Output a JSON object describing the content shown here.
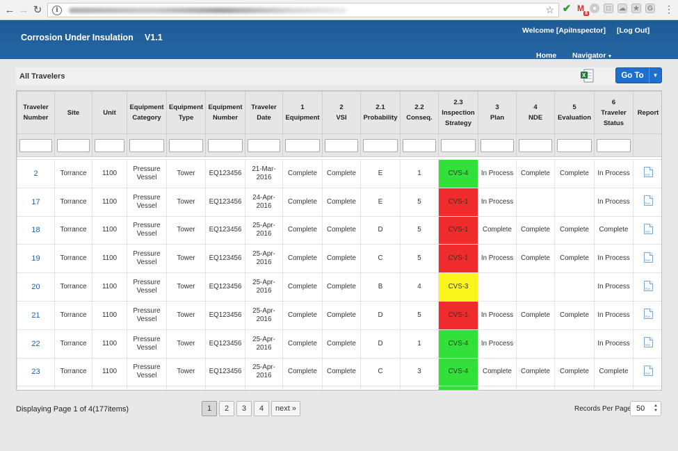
{
  "app": {
    "title": "Corrosion Under Insulation",
    "version": "V1.1",
    "welcome": "Welcome [ApiInspector]",
    "logout": "[Log Out]",
    "nav": {
      "home": "Home",
      "navigator": "Navigator"
    }
  },
  "browser": {
    "gmail_badge": "8"
  },
  "panel": {
    "title": "All Travelers",
    "goto_label": "Go To"
  },
  "columns": [
    {
      "top": "",
      "label": "Traveler Number"
    },
    {
      "top": "",
      "label": "Site"
    },
    {
      "top": "",
      "label": "Unit"
    },
    {
      "top": "",
      "label": "Equipment Category"
    },
    {
      "top": "",
      "label": "Equipment Type"
    },
    {
      "top": "",
      "label": "Equipment Number"
    },
    {
      "top": "",
      "label": "Traveler Date"
    },
    {
      "top": "1",
      "label": "Equipment"
    },
    {
      "top": "2",
      "label": "VSI"
    },
    {
      "top": "2.1",
      "label": "Probability"
    },
    {
      "top": "2.2",
      "label": "Conseq."
    },
    {
      "top": "2.3",
      "label": "Inspection Strategy"
    },
    {
      "top": "3",
      "label": "Plan"
    },
    {
      "top": "4",
      "label": "NDE"
    },
    {
      "top": "5",
      "label": "Evaluation"
    },
    {
      "top": "6",
      "label": "Traveler Status"
    },
    {
      "top": "",
      "label": "Report"
    }
  ],
  "rows": [
    {
      "number": "2",
      "site": "Torrance",
      "unit": "1100",
      "category": "Pressure Vessel",
      "type": "Tower",
      "equipment_number": "EQ123456",
      "date": "21-Mar-2016",
      "equipment": "Complete",
      "vsi": "Complete",
      "probability": "E",
      "conseq": "1",
      "strategy": "CVS-4",
      "strategy_color": "green",
      "plan": "In Process",
      "nde": "Complete",
      "evaluation": "Complete",
      "status": "In Process"
    },
    {
      "number": "17",
      "site": "Torrance",
      "unit": "1100",
      "category": "Pressure Vessel",
      "type": "Tower",
      "equipment_number": "EQ123456",
      "date": "24-Apr-2016",
      "equipment": "Complete",
      "vsi": "Complete",
      "probability": "E",
      "conseq": "5",
      "strategy": "CVS-1",
      "strategy_color": "red",
      "plan": "In Process",
      "nde": "",
      "evaluation": "",
      "status": "In Process"
    },
    {
      "number": "18",
      "site": "Torrance",
      "unit": "1100",
      "category": "Pressure Vessel",
      "type": "Tower",
      "equipment_number": "EQ123456",
      "date": "25-Apr-2016",
      "equipment": "Complete",
      "vsi": "Complete",
      "probability": "D",
      "conseq": "5",
      "strategy": "CVS-1",
      "strategy_color": "red",
      "plan": "Complete",
      "nde": "Complete",
      "evaluation": "Complete",
      "status": "Complete"
    },
    {
      "number": "19",
      "site": "Torrance",
      "unit": "1100",
      "category": "Pressure Vessel",
      "type": "Tower",
      "equipment_number": "EQ123456",
      "date": "25-Apr-2016",
      "equipment": "Complete",
      "vsi": "Complete",
      "probability": "C",
      "conseq": "5",
      "strategy": "CVS-1",
      "strategy_color": "red",
      "plan": "In Process",
      "nde": "Complete",
      "evaluation": "Complete",
      "status": "In Process"
    },
    {
      "number": "20",
      "site": "Torrance",
      "unit": "1100",
      "category": "Pressure Vessel",
      "type": "Tower",
      "equipment_number": "EQ123456",
      "date": "25-Apr-2016",
      "equipment": "Complete",
      "vsi": "Complete",
      "probability": "B",
      "conseq": "4",
      "strategy": "CVS-3",
      "strategy_color": "yellow",
      "plan": "",
      "nde": "",
      "evaluation": "",
      "status": "In Process"
    },
    {
      "number": "21",
      "site": "Torrance",
      "unit": "1100",
      "category": "Pressure Vessel",
      "type": "Tower",
      "equipment_number": "EQ123456",
      "date": "25-Apr-2016",
      "equipment": "Complete",
      "vsi": "Complete",
      "probability": "D",
      "conseq": "5",
      "strategy": "CVS-1",
      "strategy_color": "red",
      "plan": "In Process",
      "nde": "Complete",
      "evaluation": "Complete",
      "status": "In Process"
    },
    {
      "number": "22",
      "site": "Torrance",
      "unit": "1100",
      "category": "Pressure Vessel",
      "type": "Tower",
      "equipment_number": "EQ123456",
      "date": "25-Apr-2016",
      "equipment": "Complete",
      "vsi": "Complete",
      "probability": "D",
      "conseq": "1",
      "strategy": "CVS-4",
      "strategy_color": "green",
      "plan": "In Process",
      "nde": "",
      "evaluation": "",
      "status": "In Process"
    },
    {
      "number": "23",
      "site": "Torrance",
      "unit": "1100",
      "category": "Pressure Vessel",
      "type": "Tower",
      "equipment_number": "EQ123456",
      "date": "25-Apr-2016",
      "equipment": "Complete",
      "vsi": "Complete",
      "probability": "C",
      "conseq": "3",
      "strategy": "CVS-4",
      "strategy_color": "green",
      "plan": "Complete",
      "nde": "Complete",
      "evaluation": "Complete",
      "status": "Complete"
    }
  ],
  "footer": {
    "paging_text": "Displaying Page 1 of 4(177items)",
    "pages": [
      "1",
      "2",
      "3",
      "4"
    ],
    "active_page": "1",
    "next_label": "next »",
    "records_per_page_label": "Records Per Page",
    "records_per_page_value": "50"
  }
}
